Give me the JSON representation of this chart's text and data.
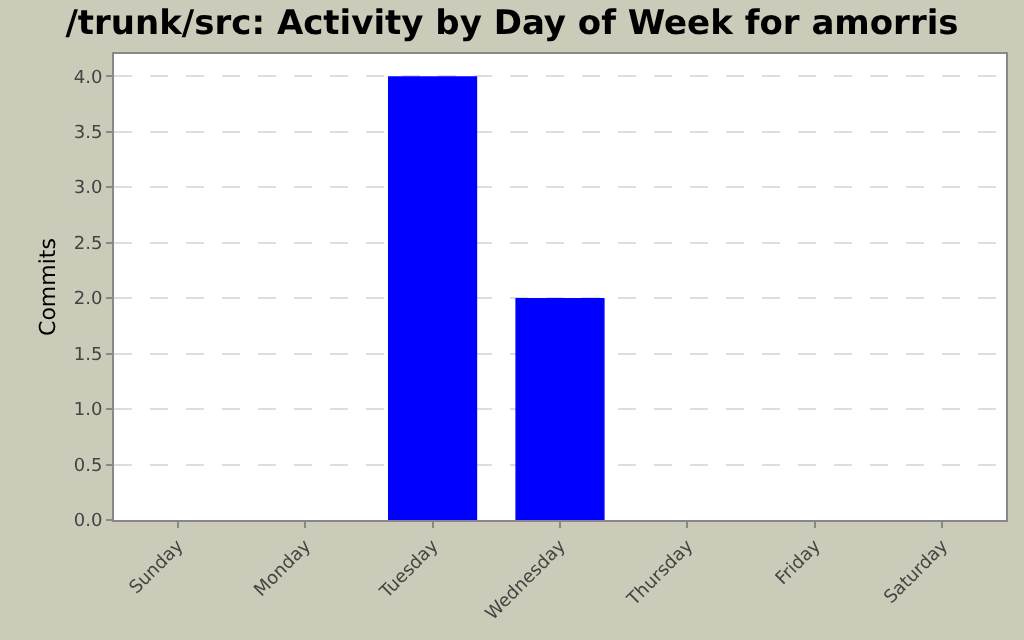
{
  "chart_data": {
    "type": "bar",
    "title": "/trunk/src: Activity by Day of Week for amorris",
    "ylabel": "Commits",
    "categories": [
      "Sunday",
      "Monday",
      "Tuesday",
      "Wednesday",
      "Thursday",
      "Friday",
      "Saturday"
    ],
    "values": [
      0,
      0,
      4,
      2,
      0,
      0,
      0
    ],
    "color": "#0000ff",
    "ylim": [
      0,
      4.2
    ],
    "yticks": [
      {
        "value": 0,
        "label": "0.0"
      },
      {
        "value": 0.5,
        "label": "0.5"
      },
      {
        "value": 1,
        "label": "1.0"
      },
      {
        "value": 1.5,
        "label": "1.5"
      },
      {
        "value": 2,
        "label": "2.0"
      },
      {
        "value": 2.5,
        "label": "2.5"
      },
      {
        "value": 3,
        "label": "3.0"
      },
      {
        "value": 3.5,
        "label": "3.5"
      },
      {
        "value": 4,
        "label": "4.0"
      }
    ],
    "grid": "y"
  }
}
